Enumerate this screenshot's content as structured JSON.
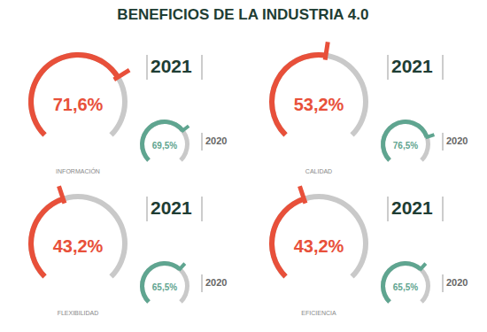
{
  "chart_data": {
    "type": "gauge",
    "title": "BENEFICIOS DE LA INDUSTRIA 4.0",
    "categories": [
      "INFORMACIÓN",
      "CALIDAD",
      "FLEXIBILIDAD",
      "EFICIENCIA"
    ],
    "ylim": [
      0,
      100
    ],
    "tick_labels": false,
    "data_labels": true,
    "series": [
      {
        "name": "2021",
        "color": "#e8503a",
        "values": [
          71.6,
          53.2,
          43.2,
          43.2
        ],
        "value_labels": [
          "71,6%",
          "53,2%",
          "43,2%",
          "43,2%"
        ]
      },
      {
        "name": "2020",
        "color": "#5fa590",
        "values": [
          69.5,
          76.5,
          65.5,
          65.5
        ],
        "value_labels": [
          "69,5%",
          "76,5%",
          "65,5%",
          "65,5%"
        ]
      }
    ]
  }
}
